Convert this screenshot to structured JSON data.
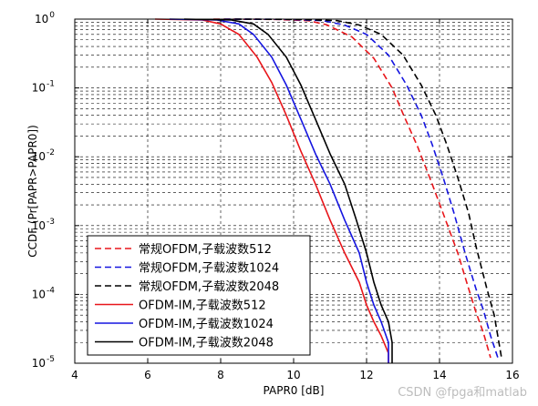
{
  "watermark": "CSDN @fpga和matlab",
  "chart_data": {
    "type": "line",
    "xlabel": "PAPR0 [dB]",
    "ylabel": "CCDF (Pr[PAPR>PAPR0])",
    "xlim": [
      4,
      16
    ],
    "ylim": [
      1e-05,
      1
    ],
    "yscale": "log",
    "grid": true,
    "legend_position": "bottom-left",
    "x_ticks": [
      "4",
      "6",
      "8",
      "10",
      "12",
      "14",
      "16"
    ],
    "y_ticks": [
      {
        "base": "10",
        "exp": "0"
      },
      {
        "base": "10",
        "exp": "-1"
      },
      {
        "base": "10",
        "exp": "-2"
      },
      {
        "base": "10",
        "exp": "-3"
      },
      {
        "base": "10",
        "exp": "-4"
      },
      {
        "base": "10",
        "exp": "-5"
      }
    ],
    "series": [
      {
        "name": "常规OFDM,子载波数512",
        "color": "#e8161b",
        "dash": true,
        "points": [
          [
            7.8,
            1
          ],
          [
            9.5,
            0.99
          ],
          [
            10.4,
            0.95
          ],
          [
            10.9,
            0.83
          ],
          [
            11.6,
            0.55
          ],
          [
            12.2,
            0.27
          ],
          [
            12.7,
            0.1
          ],
          [
            13.0,
            0.042
          ],
          [
            13.4,
            0.014
          ],
          [
            13.8,
            0.004
          ],
          [
            14.1,
            0.0015
          ],
          [
            14.5,
            0.0004
          ],
          [
            14.8,
            0.00012
          ],
          [
            15.0,
            5.5e-05
          ],
          [
            15.2,
            2.8e-05
          ],
          [
            15.4,
            1.2e-05
          ]
        ]
      },
      {
        "name": "常规OFDM,子载波数1024",
        "color": "#1515e0",
        "dash": true,
        "points": [
          [
            8.1,
            1
          ],
          [
            9.8,
            0.99
          ],
          [
            10.8,
            0.95
          ],
          [
            11.4,
            0.82
          ],
          [
            12.0,
            0.6
          ],
          [
            12.6,
            0.3
          ],
          [
            13.1,
            0.11
          ],
          [
            13.5,
            0.04
          ],
          [
            13.8,
            0.015
          ],
          [
            14.1,
            0.005
          ],
          [
            14.4,
            0.0015
          ],
          [
            14.7,
            0.0004
          ],
          [
            15.0,
            0.00012
          ],
          [
            15.2,
            6e-05
          ],
          [
            15.4,
            2.5e-05
          ],
          [
            15.6,
            1.2e-05
          ]
        ]
      },
      {
        "name": "常规OFDM,子载波数2048",
        "color": "#000000",
        "dash": true,
        "points": [
          [
            8.4,
            1
          ],
          [
            10.1,
            0.99
          ],
          [
            11.2,
            0.95
          ],
          [
            11.8,
            0.82
          ],
          [
            12.4,
            0.6
          ],
          [
            13.0,
            0.3
          ],
          [
            13.5,
            0.11
          ],
          [
            13.9,
            0.04
          ],
          [
            14.2,
            0.015
          ],
          [
            14.5,
            0.005
          ],
          [
            14.8,
            0.0015
          ],
          [
            15.0,
            0.0005
          ],
          [
            15.3,
            0.00012
          ],
          [
            15.5,
            5e-05
          ],
          [
            15.7,
            1.2e-05
          ]
        ]
      },
      {
        "name": "OFDM-IM,子载波数512",
        "color": "#e8161b",
        "dash": false,
        "points": [
          [
            6.2,
            1
          ],
          [
            7.5,
            0.97
          ],
          [
            8.0,
            0.85
          ],
          [
            8.5,
            0.6
          ],
          [
            9.0,
            0.28
          ],
          [
            9.4,
            0.12
          ],
          [
            9.8,
            0.04
          ],
          [
            10.2,
            0.012
          ],
          [
            10.6,
            0.004
          ],
          [
            11.0,
            0.0012
          ],
          [
            11.4,
            0.0004
          ],
          [
            11.8,
            0.00015
          ],
          [
            12.0,
            7e-05
          ],
          [
            12.2,
            4e-05
          ],
          [
            12.4,
            2.5e-05
          ],
          [
            12.6,
            1.4e-05
          ],
          [
            12.6,
            1e-05
          ]
        ]
      },
      {
        "name": "OFDM-IM,子载波数1024",
        "color": "#1515e0",
        "dash": false,
        "points": [
          [
            6.6,
            1
          ],
          [
            7.9,
            0.97
          ],
          [
            8.5,
            0.85
          ],
          [
            8.9,
            0.6
          ],
          [
            9.4,
            0.28
          ],
          [
            9.8,
            0.11
          ],
          [
            10.2,
            0.035
          ],
          [
            10.6,
            0.011
          ],
          [
            11.0,
            0.004
          ],
          [
            11.4,
            0.0012
          ],
          [
            11.8,
            0.0004
          ],
          [
            12.0,
            0.00015
          ],
          [
            12.2,
            7e-05
          ],
          [
            12.4,
            4e-05
          ],
          [
            12.6,
            2e-05
          ],
          [
            12.6,
            1e-05
          ]
        ]
      },
      {
        "name": "OFDM-IM,子载波数2048",
        "color": "#000000",
        "dash": false,
        "points": [
          [
            7.0,
            1
          ],
          [
            8.3,
            0.97
          ],
          [
            8.9,
            0.85
          ],
          [
            9.3,
            0.6
          ],
          [
            9.8,
            0.28
          ],
          [
            10.2,
            0.11
          ],
          [
            10.6,
            0.035
          ],
          [
            11.0,
            0.011
          ],
          [
            11.4,
            0.004
          ],
          [
            11.7,
            0.0013
          ],
          [
            12.0,
            0.0004
          ],
          [
            12.2,
            0.00015
          ],
          [
            12.4,
            7e-05
          ],
          [
            12.6,
            4e-05
          ],
          [
            12.7,
            2e-05
          ],
          [
            12.7,
            1e-05
          ]
        ]
      }
    ]
  }
}
